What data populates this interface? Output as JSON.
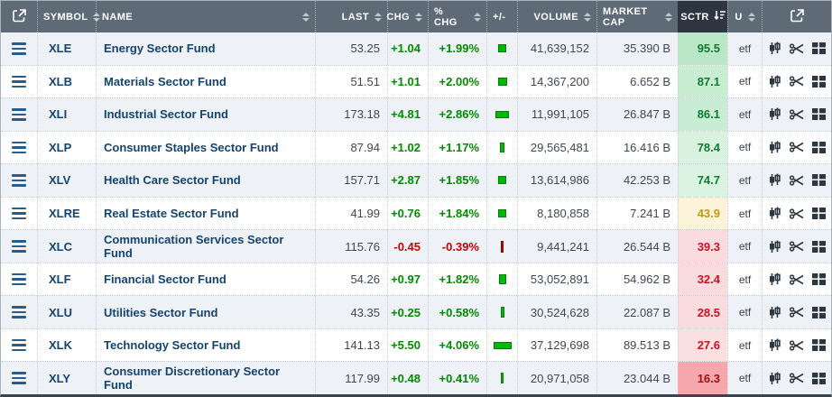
{
  "table": {
    "header": {
      "cols": [
        {
          "label": "",
          "icon": "external-link"
        },
        {
          "label": "SYMBOL",
          "sort": true
        },
        {
          "label": "NAME",
          "sort": true
        },
        {
          "label": "LAST",
          "sort": true
        },
        {
          "label": "CHG",
          "sort": true
        },
        {
          "label": "% CHG",
          "sort": true
        },
        {
          "label": "+/-",
          "sort": false
        },
        {
          "label": "VOLUME",
          "sort": true
        },
        {
          "label": "MARKET CAP",
          "sort": true
        },
        {
          "label": "SCTR",
          "sort": "desc",
          "active": true
        },
        {
          "label": "U",
          "sort": true
        },
        {
          "label": "",
          "icon": "external-link"
        }
      ]
    },
    "rows": [
      {
        "symbol": "XLE",
        "name": "Energy Sector Fund",
        "last": "53.25",
        "chg": "+1.04",
        "pct": "+1.99%",
        "trend": "up",
        "bar": {
          "w": 9,
          "h": 9
        },
        "volume": "41,639,152",
        "market_cap": "35.390 B",
        "sctr": "95.5",
        "sctr_bg": "#b9e7c7",
        "sctr_color": "#117a33",
        "u": "etf"
      },
      {
        "symbol": "XLB",
        "name": "Materials Sector Fund",
        "last": "51.51",
        "chg": "+1.01",
        "pct": "+2.00%",
        "trend": "up",
        "bar": {
          "w": 10,
          "h": 9
        },
        "volume": "14,367,200",
        "market_cap": "6.652 B",
        "sctr": "87.1",
        "sctr_bg": "#c8edd3",
        "sctr_color": "#117a33",
        "u": "etf"
      },
      {
        "symbol": "XLI",
        "name": "Industrial Sector Fund",
        "last": "173.18",
        "chg": "+4.81",
        "pct": "+2.86%",
        "trend": "up",
        "bar": {
          "w": 15,
          "h": 8
        },
        "volume": "11,991,105",
        "market_cap": "26.847 B",
        "sctr": "86.1",
        "sctr_bg": "#c9edd4",
        "sctr_color": "#117a33",
        "u": "etf"
      },
      {
        "symbol": "XLP",
        "name": "Consumer Staples Sector Fund",
        "last": "87.94",
        "chg": "+1.02",
        "pct": "+1.17%",
        "trend": "up",
        "bar": {
          "w": 5,
          "h": 11
        },
        "volume": "29,565,481",
        "market_cap": "16.416 B",
        "sctr": "78.4",
        "sctr_bg": "#d8f2df",
        "sctr_color": "#117a33",
        "u": "etf"
      },
      {
        "symbol": "XLV",
        "name": "Health Care Sector Fund",
        "last": "157.71",
        "chg": "+2.87",
        "pct": "+1.85%",
        "trend": "up",
        "bar": {
          "w": 9,
          "h": 9
        },
        "volume": "13,614,986",
        "market_cap": "42.253 B",
        "sctr": "74.7",
        "sctr_bg": "#daf3e1",
        "sctr_color": "#117a33",
        "u": "etf"
      },
      {
        "symbol": "XLRE",
        "name": "Real Estate Sector Fund",
        "last": "41.99",
        "chg": "+0.76",
        "pct": "+1.84%",
        "trend": "up",
        "bar": {
          "w": 9,
          "h": 9
        },
        "volume": "8,180,858",
        "market_cap": "7.241 B",
        "sctr": "43.9",
        "sctr_bg": "#fdf3d8",
        "sctr_color": "#bf9b1d",
        "u": "etf"
      },
      {
        "symbol": "XLC",
        "name": "Communication Services Sector Fund",
        "last": "115.76",
        "chg": "-0.45",
        "pct": "-0.39%",
        "trend": "down",
        "bar": {
          "w": 3,
          "h": 13
        },
        "volume": "9,441,241",
        "market_cap": "26.544 B",
        "sctr": "39.3",
        "sctr_bg": "#fadcdf",
        "sctr_color": "#cc1122",
        "u": "etf"
      },
      {
        "symbol": "XLF",
        "name": "Financial Sector Fund",
        "last": "54.26",
        "chg": "+0.97",
        "pct": "+1.82%",
        "trend": "up",
        "bar": {
          "w": 8,
          "h": 11
        },
        "volume": "53,052,891",
        "market_cap": "54.962 B",
        "sctr": "32.4",
        "sctr_bg": "#fadcdf",
        "sctr_color": "#cc1122",
        "u": "etf"
      },
      {
        "symbol": "XLU",
        "name": "Utilities Sector Fund",
        "last": "43.35",
        "chg": "+0.25",
        "pct": "+0.58%",
        "trend": "up",
        "bar": {
          "w": 4,
          "h": 12
        },
        "volume": "30,524,628",
        "market_cap": "22.087 B",
        "sctr": "28.5",
        "sctr_bg": "#fadcdf",
        "sctr_color": "#cc1122",
        "u": "etf"
      },
      {
        "symbol": "XLK",
        "name": "Technology Sector Fund",
        "last": "141.13",
        "chg": "+5.50",
        "pct": "+4.06%",
        "trend": "up",
        "bar": {
          "w": 20,
          "h": 8
        },
        "volume": "37,129,698",
        "market_cap": "89.513 B",
        "sctr": "27.6",
        "sctr_bg": "#fbe0e2",
        "sctr_color": "#cc1122",
        "u": "etf"
      },
      {
        "symbol": "XLY",
        "name": "Consumer Discretionary Sector Fund",
        "last": "117.99",
        "chg": "+0.48",
        "pct": "+0.41%",
        "trend": "up",
        "bar": {
          "w": 3,
          "h": 12
        },
        "volume": "20,971,058",
        "market_cap": "23.044 B",
        "sctr": "16.3",
        "sctr_bg": "#f5a7ab",
        "sctr_color": "#a50e14",
        "u": "etf"
      }
    ],
    "colors": {
      "header_bg": "#5e6b77",
      "header_active_bg": "#2c3540",
      "row_stripe": "#eef1f5",
      "link": "#15436f",
      "number": "#3f4850",
      "up": "#018b01",
      "down": "#cc0000",
      "bar_up": "#00b807",
      "bar_down": "#cc0000"
    },
    "row_icons": [
      "candlestick-chart-icon",
      "scissors-icon",
      "grid-layout-icon"
    ]
  }
}
